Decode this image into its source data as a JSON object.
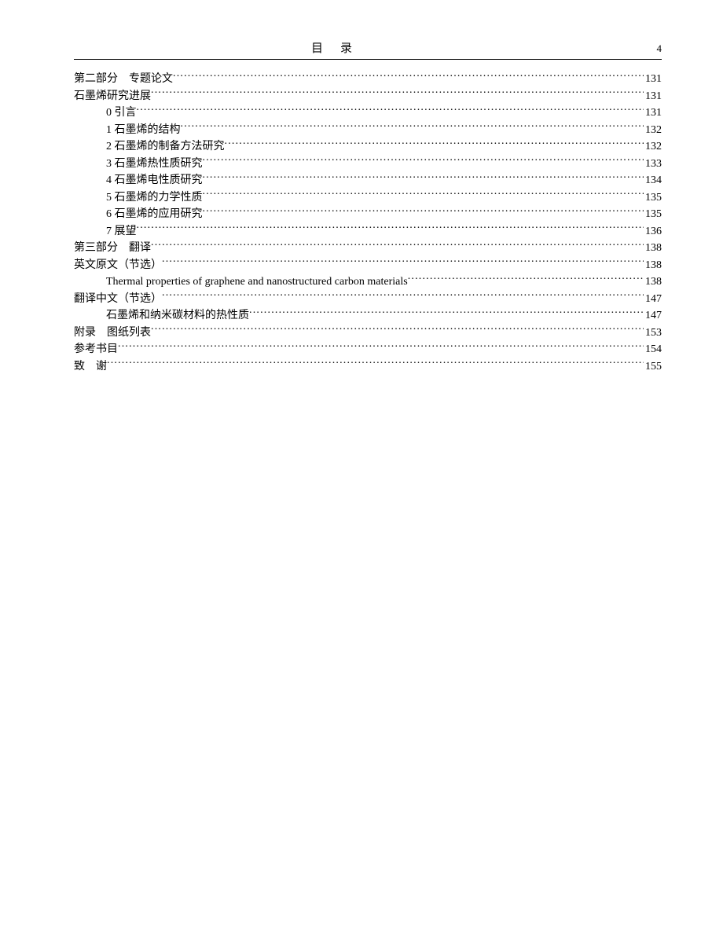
{
  "header": {
    "title": "目录",
    "page_number": "4"
  },
  "toc": [
    {
      "indent": 0,
      "label": "第二部分　专题论文 ",
      "page": "131"
    },
    {
      "indent": 0,
      "label": "石墨烯研究进展 ",
      "page": "131"
    },
    {
      "indent": 1,
      "label": "0 引言",
      "page": "131"
    },
    {
      "indent": 1,
      "label": "1 石墨烯的结构 ",
      "page": "132"
    },
    {
      "indent": 1,
      "label": "2 石墨烯的制备方法研究 ",
      "page": "132"
    },
    {
      "indent": 1,
      "label": "3 石墨烯热性质研究 ",
      "page": "133"
    },
    {
      "indent": 1,
      "label": "4 石墨烯电性质研究 ",
      "page": "134"
    },
    {
      "indent": 1,
      "label": "5 石墨烯的力学性质 ",
      "page": "135"
    },
    {
      "indent": 1,
      "label": "6 石墨烯的应用研究 ",
      "page": "135"
    },
    {
      "indent": 1,
      "label": "7 展望",
      "page": "136"
    },
    {
      "indent": 0,
      "label": "第三部分　翻译 ",
      "page": "138"
    },
    {
      "indent": 0,
      "label": "英文原文（节选） ",
      "page": "138"
    },
    {
      "indent": 1,
      "label": "Thermal properties of graphene and nanostructured carbon materials",
      "page": "138"
    },
    {
      "indent": 0,
      "label": "翻译中文（节选） ",
      "page": "147"
    },
    {
      "indent": 1,
      "label": "石墨烯和纳米碳材料的热性质",
      "page": "147"
    },
    {
      "indent": 0,
      "label": "附录　图纸列表 ",
      "page": "153"
    },
    {
      "indent": 0,
      "label": "参考书目 ",
      "page": "154"
    },
    {
      "indent": 0,
      "label": "致　谢",
      "page": "155"
    }
  ]
}
